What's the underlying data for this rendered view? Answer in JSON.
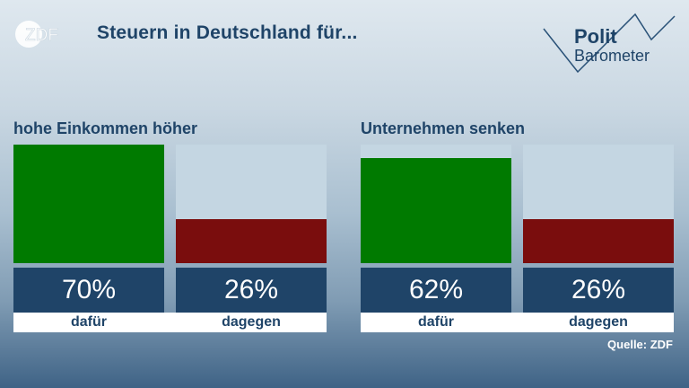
{
  "title": "Steuern in Deutschland für...",
  "brand": {
    "logo_text": "ZDF",
    "politbarometer_line1": "Polit",
    "politbarometer_line2": "Barometer"
  },
  "colors": {
    "for": "#007a00",
    "against": "#7a0d0d",
    "navy": "#1f4468",
    "empty": "#c4d6e2"
  },
  "chart_data": [
    {
      "type": "bar",
      "title": "hohe Einkommen höher",
      "categories": [
        "dafür",
        "dagegen"
      ],
      "values": [
        70,
        26
      ],
      "value_labels": [
        "70%",
        "26%"
      ],
      "ylim": [
        0,
        70
      ]
    },
    {
      "type": "bar",
      "title": "Unternehmen senken",
      "categories": [
        "dafür",
        "dagegen"
      ],
      "values": [
        62,
        26
      ],
      "value_labels": [
        "62%",
        "26%"
      ],
      "ylim": [
        0,
        70
      ]
    }
  ],
  "source": "Quelle: ZDF"
}
